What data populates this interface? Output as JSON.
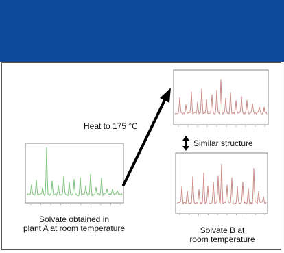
{
  "colors": {
    "header_band": "#0d4a9c",
    "green_trace": "#7cc27a",
    "red_trace": "#c88a86",
    "arrow": "#000000"
  },
  "labels": {
    "heat": "Heat to 175 °C",
    "similar": "Similar structure",
    "plant_a_line1": "Solvate obtained in",
    "plant_a_line2": "plant A at room temperature",
    "solvate_b_line1": "Solvate B at",
    "solvate_b_line2": "room temperature"
  },
  "icons": {
    "similarity": "double-arrow-icon",
    "heat": "diagonal-arrow-icon"
  }
}
